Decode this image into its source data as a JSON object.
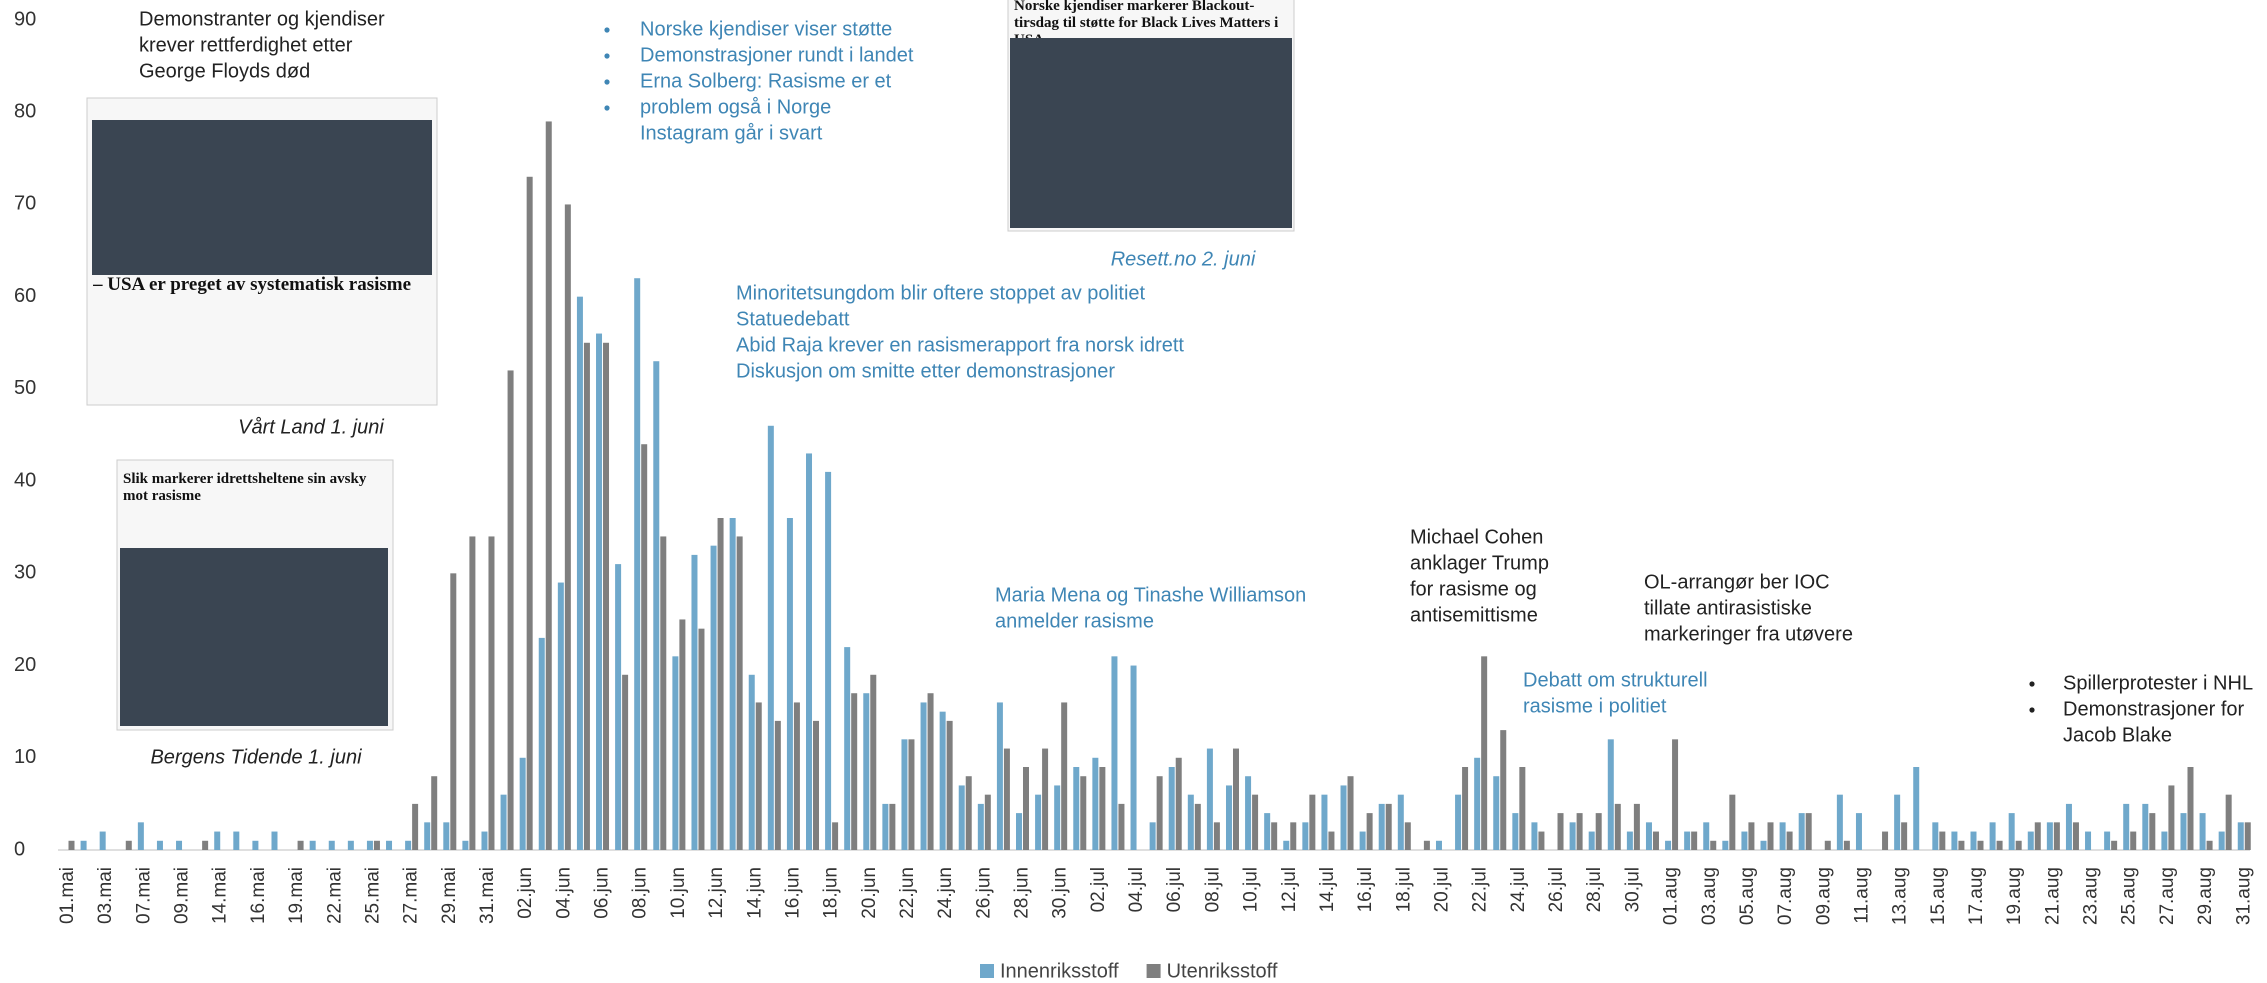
{
  "chart_data": {
    "type": "bar",
    "categories": [
      "01.mai",
      null,
      "03.mai",
      null,
      "07.mai",
      null,
      "09.mai",
      null,
      "14.mai",
      null,
      "16.mai",
      null,
      "19.mai",
      null,
      "22.mai",
      null,
      "25.mai",
      null,
      "27.mai",
      null,
      "29.mai",
      null,
      "31.mai",
      null,
      "02.jun",
      null,
      "04.jun",
      null,
      "06.jun",
      null,
      "08.jun",
      null,
      "10.jun",
      null,
      "12.jun",
      null,
      "14.jun",
      null,
      "16.jun",
      null,
      "18.jun",
      null,
      "20.jun",
      null,
      "22.jun",
      null,
      "24.jun",
      null,
      "26.jun",
      null,
      "28.jun",
      null,
      "30.jun",
      null,
      "02.jul",
      null,
      "04.jul",
      null,
      "06.jul",
      null,
      "08.jul",
      null,
      "10.jul",
      null,
      "12.jul",
      null,
      "14.jul",
      null,
      "16.jul",
      null,
      "18.jul",
      null,
      "20.jul",
      null,
      "22.jul",
      null,
      "24.jul",
      null,
      "26.jul",
      null,
      "28.jul",
      null,
      "30.jul",
      null,
      "01.aug",
      null,
      "03.aug",
      null,
      "05.aug",
      null,
      "07.aug",
      null,
      "09.aug",
      null,
      "11.aug",
      null,
      "13.aug",
      null,
      "15.aug",
      null,
      "17.aug",
      null,
      "19.aug",
      null,
      "21.aug",
      null,
      "23.aug",
      null,
      "25.aug",
      null,
      "27.aug",
      null,
      "29.aug",
      null,
      "31.aug"
    ],
    "series": [
      {
        "name": "Innenriksstoff",
        "color": "#6fa8cb",
        "values": [
          0,
          1,
          2,
          0,
          3,
          1,
          1,
          0,
          2,
          2,
          1,
          2,
          0,
          1,
          1,
          1,
          1,
          1,
          1,
          3,
          3,
          1,
          2,
          6,
          10,
          23,
          29,
          60,
          56,
          31,
          62,
          53,
          21,
          32,
          33,
          36,
          19,
          46,
          36,
          43,
          41,
          22,
          17,
          5,
          12,
          16,
          15,
          7,
          5,
          16,
          4,
          6,
          7,
          9,
          10,
          21,
          20,
          3,
          9,
          6,
          11,
          7,
          8,
          4,
          1,
          3,
          6,
          7,
          2,
          5,
          6,
          0,
          1,
          6,
          10,
          8,
          4,
          3,
          0,
          3,
          2,
          12,
          2,
          3,
          1,
          2,
          3,
          1,
          2,
          1,
          3,
          4,
          0,
          6,
          4,
          0,
          6,
          9,
          3,
          2,
          2,
          3,
          4,
          2,
          3,
          5,
          2,
          2,
          5,
          5,
          2,
          4,
          4,
          2,
          3
        ]
      },
      {
        "name": "Utenriksstoff",
        "color": "#7f7f7f",
        "values": [
          1,
          0,
          0,
          1,
          0,
          0,
          0,
          1,
          0,
          0,
          0,
          0,
          1,
          0,
          0,
          0,
          1,
          0,
          5,
          8,
          30,
          34,
          34,
          52,
          73,
          79,
          70,
          55,
          55,
          19,
          44,
          34,
          25,
          24,
          36,
          34,
          16,
          14,
          16,
          14,
          3,
          17,
          19,
          5,
          12,
          17,
          14,
          8,
          6,
          11,
          9,
          11,
          16,
          8,
          9,
          5,
          0,
          8,
          10,
          5,
          3,
          11,
          6,
          3,
          3,
          6,
          2,
          8,
          4,
          5,
          3,
          1,
          0,
          9,
          21,
          13,
          9,
          2,
          4,
          4,
          4,
          5,
          5,
          2,
          12,
          2,
          1,
          6,
          3,
          3,
          2,
          4,
          1,
          1,
          0,
          2,
          3,
          0,
          2,
          1,
          1,
          1,
          1,
          3,
          3,
          3,
          0,
          1,
          2,
          4,
          7,
          9,
          1,
          6,
          3
        ]
      }
    ],
    "ylim": [
      0,
      90
    ],
    "yticks": [
      0,
      10,
      20,
      30,
      40,
      50,
      60,
      70,
      80,
      90
    ],
    "grid": false,
    "legend": "bottom",
    "annotations": [
      {
        "color": "#222222",
        "bullets": false,
        "lines": [
          "Demonstranter og kjendiser",
          "krever rettferdighet etter",
          "George Floyds død"
        ]
      },
      {
        "color": "#3f86b5",
        "bullets": true,
        "lines": [
          "Norske kjendiser viser støtte",
          "Demonstrasjoner rundt i landet",
          "Erna Solberg: Rasisme er et",
          "problem også i Norge",
          "Instagram går i svart"
        ]
      },
      {
        "color": "#3f86b5",
        "bullets": true,
        "lines": [
          "Minoritetsungdom blir oftere stoppet av politiet",
          "Statuedebatt",
          "Abid Raja krever en rasismerapport fra norsk idrett",
          "Diskusjon om smitte etter demonstrasjoner"
        ]
      },
      {
        "color": "#3f86b5",
        "bullets": false,
        "lines": [
          "Maria Mena og Tinashe Williamson",
          "anmelder rasisme"
        ]
      },
      {
        "color": "#222222",
        "bullets": false,
        "lines": [
          "Michael Cohen",
          "anklager Trump",
          "for rasisme og",
          "antisemittisme"
        ]
      },
      {
        "color": "#3f86b5",
        "bullets": false,
        "lines": [
          "Debatt om strukturell",
          "rasisme i politiet"
        ]
      },
      {
        "color": "#222222",
        "bullets": false,
        "lines": [
          "OL-arrangør ber IOC",
          "tillate antirasistiske",
          "markeringer fra utøvere"
        ]
      },
      {
        "color": "#222222",
        "bullets": true,
        "lines": [
          "Spillerprotester i NHL",
          "Demonstrasjoner for",
          "Jacob Blake"
        ]
      }
    ],
    "clippings": [
      {
        "caption": "Vårt Land 1. juni",
        "headline": "– USA er preget av systematisk rasisme"
      },
      {
        "caption": "Resett.no 2. juni",
        "headline": "Norske kjendiser markerer Blackout-tirsdag til støtte for Black Lives Matters i USA"
      },
      {
        "caption": "Bergens Tidende 1. juni",
        "headline": "Slik markerer idrettsheltene sin avsky mot rasisme"
      }
    ]
  }
}
